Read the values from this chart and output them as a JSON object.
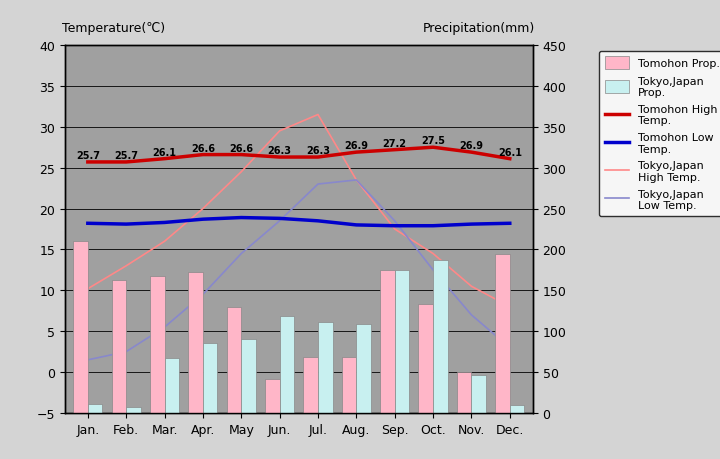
{
  "months": [
    "Jan.",
    "Feb.",
    "Mar.",
    "Apr.",
    "May",
    "Jun.",
    "Jul.",
    "Aug.",
    "Sep.",
    "Oct.",
    "Nov.",
    "Dec."
  ],
  "tomohon_high": [
    25.7,
    25.7,
    26.1,
    26.6,
    26.6,
    26.3,
    26.3,
    26.9,
    27.2,
    27.5,
    26.9,
    26.1
  ],
  "tomohon_low": [
    18.2,
    18.1,
    18.3,
    18.7,
    18.9,
    18.8,
    18.5,
    18.0,
    17.9,
    17.9,
    18.1,
    18.2
  ],
  "tokyo_high": [
    10.2,
    13.0,
    16.0,
    20.0,
    24.5,
    29.5,
    31.5,
    23.5,
    17.5,
    14.5,
    10.5,
    8.0
  ],
  "tokyo_low": [
    1.5,
    2.5,
    5.5,
    9.5,
    14.5,
    18.5,
    23.0,
    23.5,
    18.5,
    12.5,
    7.0,
    3.0
  ],
  "tomohon_precip_mm": [
    210,
    163,
    167,
    172,
    130,
    42,
    69,
    69,
    175,
    133,
    50,
    195
  ],
  "tokyo_precip_mm": [
    11,
    7,
    67,
    86,
    91,
    119,
    111,
    109,
    175,
    187,
    47,
    10
  ],
  "ylim_temp": [
    -5,
    40
  ],
  "ylim_precip": [
    0,
    450
  ],
  "bar_width": 0.38,
  "tomohon_bar_color": "#FFB6C8",
  "tokyo_bar_color": "#C8F0F0",
  "tomohon_high_color": "#CC0000",
  "tomohon_low_color": "#0000CC",
  "tokyo_high_color": "#FF8888",
  "tokyo_low_color": "#8888CC",
  "fig_bg_color": "#D4D4D4",
  "plot_bg_color": "#A0A0A0",
  "title_left": "Temperature(℃)",
  "title_right": "Precipitation(mm)",
  "yticks_temp": [
    -5,
    0,
    5,
    10,
    15,
    20,
    25,
    30,
    35,
    40
  ],
  "yticks_precip": [
    0,
    50,
    100,
    150,
    200,
    250,
    300,
    350,
    400,
    450
  ]
}
